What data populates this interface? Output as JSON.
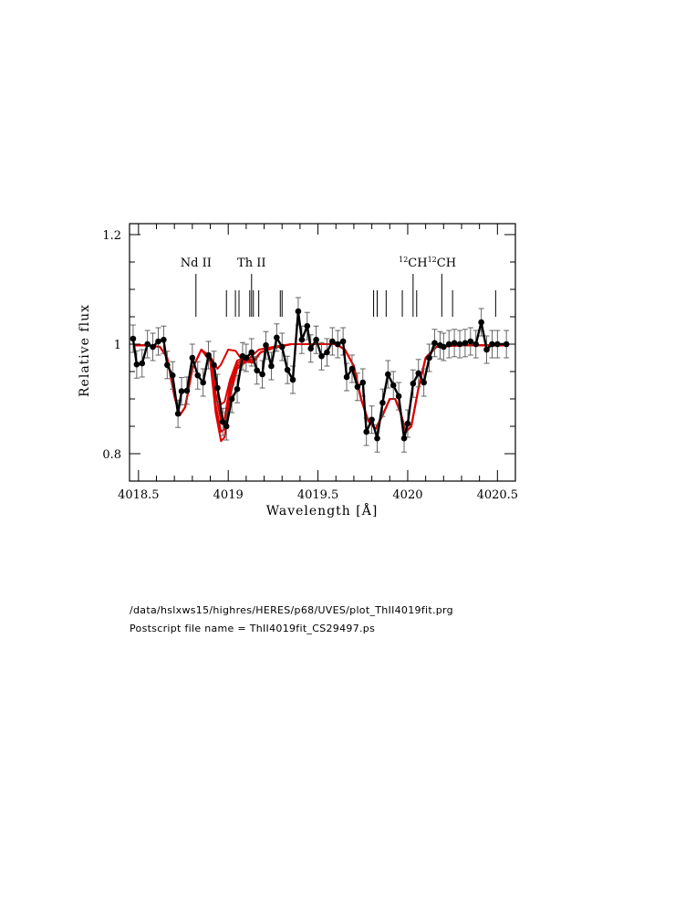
{
  "chart_data": {
    "type": "line",
    "title": "",
    "xlabel": "Wavelength [Å]",
    "ylabel": "Relative flux",
    "xlim": [
      4018.45,
      4020.6
    ],
    "ylim": [
      0.75,
      1.22
    ],
    "xticks": [
      4018.5,
      4019,
      4019.5,
      4020,
      4020.5
    ],
    "xtick_labels": [
      "4018.5",
      "4019",
      "4019.5",
      "4020",
      "4020.5"
    ],
    "yticks": [
      0.8,
      1,
      1.2
    ],
    "ytick_labels": [
      "0.8",
      "1",
      "1.2"
    ],
    "grid": false,
    "line_labels": [
      {
        "text": "Nd  II",
        "x": 4018.82
      },
      {
        "text": "Th  II",
        "x": 4019.13
      },
      {
        "text": "12CH",
        "sup": "12",
        "base": "CH",
        "x": 4020.03
      },
      {
        "text": "12CH",
        "sup": "12",
        "base": "CH",
        "x": 4020.19
      }
    ],
    "line_markers": [
      {
        "x": 4018.82,
        "major": true
      },
      {
        "x": 4018.99,
        "major": false
      },
      {
        "x": 4019.04,
        "major": false
      },
      {
        "x": 4019.06,
        "major": false
      },
      {
        "x": 4019.12,
        "major": false
      },
      {
        "x": 4019.13,
        "major": true
      },
      {
        "x": 4019.14,
        "major": false
      },
      {
        "x": 4019.17,
        "major": false
      },
      {
        "x": 4019.29,
        "major": false
      },
      {
        "x": 4019.3,
        "major": false
      },
      {
        "x": 4019.81,
        "major": false
      },
      {
        "x": 4019.83,
        "major": false
      },
      {
        "x": 4019.88,
        "major": false
      },
      {
        "x": 4019.97,
        "major": false
      },
      {
        "x": 4020.03,
        "major": true
      },
      {
        "x": 4020.05,
        "major": false
      },
      {
        "x": 4020.19,
        "major": true
      },
      {
        "x": 4020.25,
        "major": false
      },
      {
        "x": 4020.49,
        "major": false
      }
    ],
    "observed": {
      "color": "#000000",
      "error": [
        0.025,
        0.025,
        0.025,
        0.025,
        0.025,
        0.025,
        0.025,
        0.025,
        0.025,
        0.025,
        0.025,
        0.025,
        0.025,
        0.025,
        0.025,
        0.025,
        0.025,
        0.025,
        0.025,
        0.025,
        0.025,
        0.025,
        0.025,
        0.025,
        0.025,
        0.025,
        0.025,
        0.025,
        0.025,
        0.025,
        0.025,
        0.025,
        0.025,
        0.025,
        0.025,
        0.025,
        0.025,
        0.025,
        0.025,
        0.025,
        0.025,
        0.025,
        0.025,
        0.025,
        0.025,
        0.025,
        0.025,
        0.025,
        0.025,
        0.025,
        0.025,
        0.025,
        0.025,
        0.025,
        0.025,
        0.025,
        0.025,
        0.025,
        0.025,
        0.025,
        0.025,
        0.025,
        0.025,
        0.025,
        0.025,
        0.025,
        0.025,
        0.025,
        0.025,
        0.025,
        0.025,
        0.025,
        0.025,
        0.025
      ],
      "points": [
        [
          4018.47,
          1.01
        ],
        [
          4018.49,
          0.963
        ],
        [
          4018.52,
          0.965
        ],
        [
          4018.55,
          1.0
        ],
        [
          4018.58,
          0.995
        ],
        [
          4018.61,
          1.005
        ],
        [
          4018.64,
          1.008
        ],
        [
          4018.66,
          0.962
        ],
        [
          4018.69,
          0.943
        ],
        [
          4018.72,
          0.873
        ],
        [
          4018.74,
          0.914
        ],
        [
          4018.77,
          0.915
        ],
        [
          4018.8,
          0.975
        ],
        [
          4018.83,
          0.943
        ],
        [
          4018.86,
          0.93
        ],
        [
          4018.89,
          0.98
        ],
        [
          4018.92,
          0.962
        ],
        [
          4018.94,
          0.92
        ],
        [
          4018.97,
          0.858
        ],
        [
          4018.99,
          0.85
        ],
        [
          4019.02,
          0.9
        ],
        [
          4019.05,
          0.918
        ],
        [
          4019.08,
          0.978
        ],
        [
          4019.1,
          0.975
        ],
        [
          4019.13,
          0.985
        ],
        [
          4019.16,
          0.952
        ],
        [
          4019.19,
          0.945
        ],
        [
          4019.21,
          0.998
        ],
        [
          4019.24,
          0.96
        ],
        [
          4019.27,
          1.012
        ],
        [
          4019.3,
          0.995
        ],
        [
          4019.33,
          0.953
        ],
        [
          4019.36,
          0.935
        ],
        [
          4019.39,
          1.06
        ],
        [
          4019.41,
          1.008
        ],
        [
          4019.44,
          1.033
        ],
        [
          4019.46,
          0.992
        ],
        [
          4019.49,
          1.008
        ],
        [
          4019.52,
          0.978
        ],
        [
          4019.55,
          0.985
        ],
        [
          4019.58,
          1.005
        ],
        [
          4019.61,
          1.0
        ],
        [
          4019.64,
          1.005
        ],
        [
          4019.66,
          0.94
        ],
        [
          4019.69,
          0.955
        ],
        [
          4019.72,
          0.922
        ],
        [
          4019.75,
          0.93
        ],
        [
          4019.77,
          0.84
        ],
        [
          4019.8,
          0.862
        ],
        [
          4019.83,
          0.828
        ],
        [
          4019.86,
          0.893
        ],
        [
          4019.89,
          0.945
        ],
        [
          4019.92,
          0.925
        ],
        [
          4019.95,
          0.905
        ],
        [
          4019.98,
          0.828
        ],
        [
          4020.0,
          0.855
        ],
        [
          4020.03,
          0.928
        ],
        [
          4020.06,
          0.947
        ],
        [
          4020.09,
          0.93
        ],
        [
          4020.12,
          0.975
        ],
        [
          4020.15,
          1.002
        ],
        [
          4020.18,
          0.998
        ],
        [
          4020.2,
          0.995
        ],
        [
          4020.23,
          1.0
        ],
        [
          4020.26,
          1.002
        ],
        [
          4020.29,
          1.0
        ],
        [
          4020.32,
          1.002
        ],
        [
          4020.35,
          1.005
        ],
        [
          4020.38,
          1.0
        ],
        [
          4020.41,
          1.04
        ],
        [
          4020.44,
          0.99
        ],
        [
          4020.47,
          1.0
        ],
        [
          4020.5,
          1.0
        ],
        [
          4020.55,
          1.0
        ]
      ]
    },
    "models": [
      {
        "color": "#dd0000",
        "points": [
          [
            4018.47,
            0.998
          ],
          [
            4018.55,
            0.998
          ],
          [
            4018.62,
            0.995
          ],
          [
            4018.66,
            0.975
          ],
          [
            4018.7,
            0.905
          ],
          [
            4018.73,
            0.87
          ],
          [
            4018.76,
            0.885
          ],
          [
            4018.8,
            0.955
          ],
          [
            4018.85,
            0.99
          ],
          [
            4018.9,
            0.978
          ],
          [
            4018.94,
            0.955
          ],
          [
            4018.96,
            0.963
          ],
          [
            4019.0,
            0.99
          ],
          [
            4019.04,
            0.988
          ],
          [
            4019.08,
            0.97
          ],
          [
            4019.12,
            0.975
          ],
          [
            4019.17,
            0.99
          ],
          [
            4019.25,
            0.995
          ],
          [
            4019.35,
            1.0
          ],
          [
            4019.5,
            1.0
          ],
          [
            4019.6,
            1.0
          ],
          [
            4019.65,
            0.99
          ],
          [
            4019.7,
            0.96
          ],
          [
            4019.74,
            0.9
          ],
          [
            4019.78,
            0.86
          ],
          [
            4019.82,
            0.845
          ],
          [
            4019.86,
            0.87
          ],
          [
            4019.9,
            0.9
          ],
          [
            4019.93,
            0.9
          ],
          [
            4019.96,
            0.875
          ],
          [
            4019.99,
            0.84
          ],
          [
            4020.02,
            0.85
          ],
          [
            4020.06,
            0.92
          ],
          [
            4020.1,
            0.975
          ],
          [
            4020.16,
            0.995
          ],
          [
            4020.3,
            0.998
          ],
          [
            4020.55,
            0.998
          ]
        ]
      },
      {
        "color": "#dd0000",
        "points": [
          [
            4018.47,
            0.998
          ],
          [
            4018.55,
            0.998
          ],
          [
            4018.62,
            0.995
          ],
          [
            4018.66,
            0.975
          ],
          [
            4018.7,
            0.905
          ],
          [
            4018.73,
            0.87
          ],
          [
            4018.76,
            0.885
          ],
          [
            4018.8,
            0.955
          ],
          [
            4018.85,
            0.99
          ],
          [
            4018.9,
            0.975
          ],
          [
            4018.93,
            0.93
          ],
          [
            4018.96,
            0.89
          ],
          [
            4018.98,
            0.895
          ],
          [
            4019.01,
            0.935
          ],
          [
            4019.05,
            0.97
          ],
          [
            4019.1,
            0.975
          ],
          [
            4019.14,
            0.97
          ],
          [
            4019.18,
            0.985
          ],
          [
            4019.25,
            0.993
          ],
          [
            4019.35,
            1.0
          ],
          [
            4019.5,
            1.0
          ],
          [
            4019.6,
            1.0
          ],
          [
            4019.65,
            0.99
          ],
          [
            4019.7,
            0.96
          ],
          [
            4019.74,
            0.9
          ],
          [
            4019.78,
            0.86
          ],
          [
            4019.82,
            0.845
          ],
          [
            4019.86,
            0.87
          ],
          [
            4019.9,
            0.9
          ],
          [
            4019.93,
            0.9
          ],
          [
            4019.96,
            0.875
          ],
          [
            4019.99,
            0.84
          ],
          [
            4020.02,
            0.85
          ],
          [
            4020.06,
            0.92
          ],
          [
            4020.1,
            0.975
          ],
          [
            4020.16,
            0.995
          ],
          [
            4020.3,
            0.998
          ],
          [
            4020.55,
            0.998
          ]
        ]
      },
      {
        "color": "#dd0000",
        "points": [
          [
            4018.47,
            0.998
          ],
          [
            4018.55,
            0.998
          ],
          [
            4018.62,
            0.995
          ],
          [
            4018.66,
            0.975
          ],
          [
            4018.7,
            0.905
          ],
          [
            4018.73,
            0.87
          ],
          [
            4018.76,
            0.885
          ],
          [
            4018.8,
            0.955
          ],
          [
            4018.85,
            0.99
          ],
          [
            4018.9,
            0.972
          ],
          [
            4018.93,
            0.91
          ],
          [
            4018.96,
            0.86
          ],
          [
            4018.98,
            0.865
          ],
          [
            4019.01,
            0.925
          ],
          [
            4019.05,
            0.965
          ],
          [
            4019.1,
            0.973
          ],
          [
            4019.14,
            0.97
          ],
          [
            4019.18,
            0.985
          ],
          [
            4019.25,
            0.993
          ],
          [
            4019.35,
            1.0
          ],
          [
            4019.5,
            1.0
          ],
          [
            4019.6,
            1.0
          ],
          [
            4019.65,
            0.99
          ],
          [
            4019.7,
            0.96
          ],
          [
            4019.74,
            0.9
          ],
          [
            4019.78,
            0.86
          ],
          [
            4019.82,
            0.845
          ],
          [
            4019.86,
            0.87
          ],
          [
            4019.9,
            0.9
          ],
          [
            4019.93,
            0.9
          ],
          [
            4019.96,
            0.875
          ],
          [
            4019.99,
            0.84
          ],
          [
            4020.02,
            0.85
          ],
          [
            4020.06,
            0.92
          ],
          [
            4020.1,
            0.975
          ],
          [
            4020.16,
            0.995
          ],
          [
            4020.3,
            0.998
          ],
          [
            4020.55,
            0.998
          ]
        ]
      },
      {
        "color": "#dd0000",
        "points": [
          [
            4018.47,
            0.998
          ],
          [
            4018.55,
            0.998
          ],
          [
            4018.62,
            0.995
          ],
          [
            4018.66,
            0.975
          ],
          [
            4018.7,
            0.905
          ],
          [
            4018.73,
            0.87
          ],
          [
            4018.76,
            0.885
          ],
          [
            4018.8,
            0.955
          ],
          [
            4018.85,
            0.99
          ],
          [
            4018.9,
            0.97
          ],
          [
            4018.93,
            0.89
          ],
          [
            4018.96,
            0.84
          ],
          [
            4018.98,
            0.845
          ],
          [
            4019.01,
            0.915
          ],
          [
            4019.05,
            0.96
          ],
          [
            4019.1,
            0.97
          ],
          [
            4019.14,
            0.968
          ],
          [
            4019.18,
            0.985
          ],
          [
            4019.25,
            0.993
          ],
          [
            4019.35,
            1.0
          ],
          [
            4019.5,
            1.0
          ],
          [
            4019.6,
            1.0
          ],
          [
            4019.65,
            0.99
          ],
          [
            4019.7,
            0.96
          ],
          [
            4019.74,
            0.9
          ],
          [
            4019.78,
            0.86
          ],
          [
            4019.82,
            0.845
          ],
          [
            4019.86,
            0.87
          ],
          [
            4019.9,
            0.9
          ],
          [
            4019.93,
            0.9
          ],
          [
            4019.96,
            0.875
          ],
          [
            4019.99,
            0.84
          ],
          [
            4020.02,
            0.85
          ],
          [
            4020.06,
            0.92
          ],
          [
            4020.1,
            0.975
          ],
          [
            4020.16,
            0.995
          ],
          [
            4020.3,
            0.998
          ],
          [
            4020.55,
            0.998
          ]
        ]
      },
      {
        "color": "#dd0000",
        "points": [
          [
            4018.47,
            0.998
          ],
          [
            4018.55,
            0.998
          ],
          [
            4018.62,
            0.995
          ],
          [
            4018.66,
            0.975
          ],
          [
            4018.7,
            0.905
          ],
          [
            4018.73,
            0.87
          ],
          [
            4018.76,
            0.885
          ],
          [
            4018.8,
            0.955
          ],
          [
            4018.85,
            0.99
          ],
          [
            4018.9,
            0.968
          ],
          [
            4018.93,
            0.875
          ],
          [
            4018.96,
            0.823
          ],
          [
            4018.98,
            0.83
          ],
          [
            4019.01,
            0.905
          ],
          [
            4019.05,
            0.955
          ],
          [
            4019.1,
            0.968
          ],
          [
            4019.14,
            0.966
          ],
          [
            4019.18,
            0.985
          ],
          [
            4019.25,
            0.993
          ],
          [
            4019.35,
            1.0
          ],
          [
            4019.5,
            1.0
          ],
          [
            4019.6,
            1.0
          ],
          [
            4019.65,
            0.99
          ],
          [
            4019.7,
            0.96
          ],
          [
            4019.74,
            0.9
          ],
          [
            4019.78,
            0.86
          ],
          [
            4019.82,
            0.845
          ],
          [
            4019.86,
            0.87
          ],
          [
            4019.9,
            0.9
          ],
          [
            4019.93,
            0.9
          ],
          [
            4019.96,
            0.875
          ],
          [
            4019.99,
            0.84
          ],
          [
            4020.02,
            0.85
          ],
          [
            4020.06,
            0.92
          ],
          [
            4020.1,
            0.975
          ],
          [
            4020.16,
            0.995
          ],
          [
            4020.3,
            0.998
          ],
          [
            4020.55,
            0.998
          ]
        ]
      }
    ]
  },
  "captions": {
    "program_path": "/data/hslxws15/highres/HERES/p68/UVES/plot_ThII4019fit.prg",
    "postscript_name": "Postscript file name = ThII4019fit_CS29497.ps"
  }
}
